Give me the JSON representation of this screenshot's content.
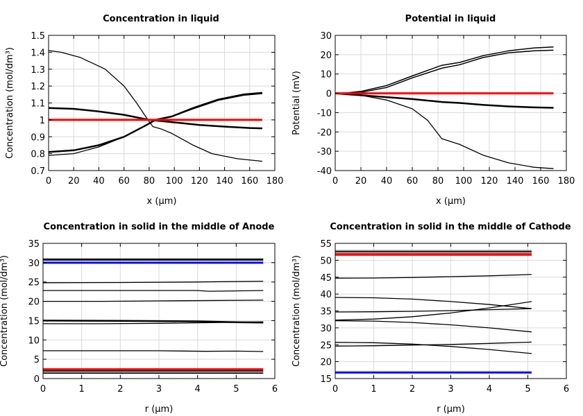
{
  "chart_data": [
    {
      "type": "line",
      "title": "Concentration in liquid",
      "xlabel": "x (µm)",
      "ylabel": "Concentration (mol/dm³)",
      "xlim": [
        0,
        180
      ],
      "ylim": [
        0.7,
        1.5
      ],
      "xticks": [
        0,
        20,
        40,
        60,
        80,
        100,
        120,
        140,
        160,
        180
      ],
      "yticks": [
        0.7,
        0.8,
        0.9,
        1,
        1.1,
        1.2,
        1.3,
        1.4,
        1.5
      ],
      "grid": true,
      "series": [
        {
          "color": "#000000",
          "width": 1.3,
          "x": [
            0,
            10,
            25,
            45,
            60,
            70,
            79,
            83,
            90,
            98,
            115,
            130,
            150,
            170
          ],
          "y": [
            1.41,
            1.4,
            1.37,
            1.3,
            1.2,
            1.1,
            1.0,
            0.96,
            0.945,
            0.92,
            0.85,
            0.8,
            0.77,
            0.755
          ]
        },
        {
          "color": "#000000",
          "width": 2.5,
          "x": [
            0,
            20,
            40,
            60,
            80,
            100,
            120,
            140,
            160,
            170
          ],
          "y": [
            1.07,
            1.065,
            1.05,
            1.03,
            1.0,
            0.985,
            0.97,
            0.96,
            0.952,
            0.95
          ]
        },
        {
          "color": "#000000",
          "width": 2.5,
          "x": [
            0,
            20,
            40,
            60,
            78,
            85,
            98,
            115,
            135,
            155,
            170
          ],
          "y": [
            0.81,
            0.82,
            0.85,
            0.9,
            0.97,
            1.0,
            1.02,
            1.07,
            1.12,
            1.15,
            1.16
          ]
        },
        {
          "color": "#000000",
          "width": 1.3,
          "x": [
            0,
            20,
            40,
            60,
            78,
            85,
            100,
            115,
            135,
            155,
            170
          ],
          "y": [
            0.79,
            0.8,
            0.84,
            0.9,
            0.97,
            1.0,
            1.025,
            1.065,
            1.115,
            1.145,
            1.155
          ]
        },
        {
          "color": "#ff0000",
          "width": 3,
          "x": [
            0,
            170
          ],
          "y": [
            1.0,
            1.0
          ]
        }
      ]
    },
    {
      "type": "line",
      "title": "Potential in liquid",
      "xlabel": "x (µm)",
      "ylabel": "Potential (mV)",
      "xlim": [
        0,
        180
      ],
      "ylim": [
        -40,
        30
      ],
      "xticks": [
        0,
        20,
        40,
        60,
        80,
        100,
        120,
        140,
        160,
        180
      ],
      "yticks": [
        -40,
        -30,
        -20,
        -10,
        0,
        10,
        20,
        30
      ],
      "grid": true,
      "series": [
        {
          "color": "#000000",
          "width": 1.5,
          "x": [
            0,
            10,
            20,
            40,
            60,
            83,
            97,
            115,
            135,
            155,
            170
          ],
          "y": [
            0,
            0.3,
            1,
            4,
            9,
            14.5,
            16,
            19.5,
            22,
            23.5,
            24
          ]
        },
        {
          "color": "#000000",
          "width": 1.5,
          "x": [
            0,
            10,
            20,
            40,
            60,
            83,
            97,
            115,
            135,
            155,
            170
          ],
          "y": [
            0,
            0.2,
            0.5,
            3,
            8,
            13,
            14.8,
            18.5,
            21,
            22,
            22.3
          ]
        },
        {
          "color": "#000000",
          "width": 2.5,
          "x": [
            0,
            20,
            40,
            60,
            83,
            97,
            115,
            135,
            155,
            170
          ],
          "y": [
            0,
            -1,
            -2,
            -3,
            -4.5,
            -5,
            -6,
            -6.8,
            -7.3,
            -7.5
          ]
        },
        {
          "color": "#000000",
          "width": 1.3,
          "x": [
            0,
            10,
            20,
            40,
            60,
            72,
            83,
            97,
            115,
            135,
            155,
            170
          ],
          "y": [
            0,
            -0.3,
            -1,
            -3.5,
            -8,
            -14,
            -23.5,
            -26.5,
            -32,
            -36,
            -38.3,
            -39
          ]
        },
        {
          "color": "#ff0000",
          "width": 3,
          "x": [
            0,
            170
          ],
          "y": [
            0,
            0
          ]
        }
      ]
    },
    {
      "type": "line",
      "title": "Concentration in solid in the middle of Anode",
      "xlabel": "r (µm)",
      "ylabel": "Concentration (mol/dm³)",
      "xlim": [
        0,
        6
      ],
      "ylim": [
        0,
        35
      ],
      "xticks": [
        0,
        1,
        2,
        3,
        4,
        5,
        6
      ],
      "yticks": [
        0,
        5,
        10,
        15,
        20,
        25,
        30,
        35
      ],
      "grid": true,
      "series": [
        {
          "color": "#000000",
          "width": 3,
          "x": [
            0,
            5.7
          ],
          "y": [
            30.8,
            30.8
          ]
        },
        {
          "color": "#0000ff",
          "width": 3,
          "x": [
            0,
            5.7
          ],
          "y": [
            30,
            30
          ]
        },
        {
          "color": "#000000",
          "width": 1.3,
          "x": [
            0,
            2,
            4,
            5.7
          ],
          "y": [
            24.8,
            24.85,
            25,
            25.2
          ]
        },
        {
          "color": "#000000",
          "width": 1.3,
          "x": [
            0,
            2,
            4,
            4.3,
            5.7
          ],
          "y": [
            22.8,
            22.8,
            22.8,
            22.6,
            22.8
          ]
        },
        {
          "color": "#000000",
          "width": 1.3,
          "x": [
            0,
            1.5,
            3,
            5.7
          ],
          "y": [
            20,
            20,
            20.1,
            20.3
          ]
        },
        {
          "color": "#000000",
          "width": 2.5,
          "x": [
            0,
            2,
            4,
            5,
            5.7
          ],
          "y": [
            15,
            14.95,
            14.8,
            14.6,
            14.5
          ]
        },
        {
          "color": "#000000",
          "width": 1.3,
          "x": [
            0,
            1.5,
            3,
            4.5,
            5.7
          ],
          "y": [
            14.2,
            14.2,
            14.3,
            14.5,
            14.7
          ]
        },
        {
          "color": "#000000",
          "width": 1.3,
          "x": [
            0,
            3,
            4.2,
            5,
            5.7
          ],
          "y": [
            7.2,
            7.2,
            7.05,
            7.1,
            7.0
          ]
        },
        {
          "color": "#ff0000",
          "width": 3,
          "x": [
            0,
            5.7
          ],
          "y": [
            2.4,
            2.4
          ]
        },
        {
          "color": "#000000",
          "width": 1.5,
          "x": [
            0,
            5.7
          ],
          "y": [
            2.0,
            2.0
          ]
        },
        {
          "color": "#999999",
          "width": 1.5,
          "x": [
            0,
            5.7
          ],
          "y": [
            1.7,
            1.7
          ]
        },
        {
          "color": "#000000",
          "width": 1.5,
          "x": [
            0,
            5.7
          ],
          "y": [
            1.4,
            1.4
          ]
        }
      ]
    },
    {
      "type": "line",
      "title": "Concentration in solid in the middle of Cathode",
      "xlabel": "r (µm)",
      "ylabel": "Concentration (mol/dm³)",
      "xlim": [
        0,
        6
      ],
      "ylim": [
        15,
        55
      ],
      "xticks": [
        0,
        1,
        2,
        3,
        4,
        5,
        6
      ],
      "yticks": [
        15,
        20,
        25,
        30,
        35,
        40,
        45,
        50,
        55
      ],
      "grid": true,
      "series": [
        {
          "color": "#999999",
          "width": 1.5,
          "x": [
            0,
            5.1
          ],
          "y": [
            52.9,
            52.9
          ]
        },
        {
          "color": "#000000",
          "width": 1.5,
          "x": [
            0,
            5.1
          ],
          "y": [
            52.6,
            52.6
          ]
        },
        {
          "color": "#999999",
          "width": 1.5,
          "x": [
            0,
            5.1
          ],
          "y": [
            52.2,
            52.2
          ]
        },
        {
          "color": "#ff0000",
          "width": 3.5,
          "x": [
            0,
            5.1
          ],
          "y": [
            51.7,
            51.7
          ]
        },
        {
          "color": "#000000",
          "width": 1.3,
          "x": [
            0,
            1,
            2,
            3,
            4,
            5.1
          ],
          "y": [
            44.7,
            44.75,
            44.9,
            45.15,
            45.4,
            45.8
          ]
        },
        {
          "color": "#000000",
          "width": 1.3,
          "x": [
            0,
            1,
            2,
            3,
            4,
            5.1
          ],
          "y": [
            39,
            38.9,
            38.5,
            37.8,
            36.9,
            35.7
          ]
        },
        {
          "color": "#000000",
          "width": 1.3,
          "x": [
            0,
            1,
            2,
            3,
            4,
            5.1
          ],
          "y": [
            34.7,
            34.75,
            34.9,
            35.1,
            35.4,
            35.7
          ]
        },
        {
          "color": "#000000",
          "width": 1.3,
          "x": [
            0,
            1,
            2,
            3,
            4,
            5.1
          ],
          "y": [
            32.3,
            32.6,
            33.3,
            34.4,
            35.9,
            37.8
          ]
        },
        {
          "color": "#000000",
          "width": 1.3,
          "x": [
            0,
            1,
            2,
            3,
            4,
            5.1
          ],
          "y": [
            32.1,
            32,
            31.6,
            30.9,
            30,
            28.8
          ]
        },
        {
          "color": "#000000",
          "width": 1.3,
          "x": [
            0,
            1,
            2,
            3,
            4,
            5.1
          ],
          "y": [
            25.7,
            25.6,
            25.2,
            24.5,
            23.6,
            22.4
          ]
        },
        {
          "color": "#000000",
          "width": 1.3,
          "x": [
            0,
            1,
            2,
            3,
            4,
            5.1
          ],
          "y": [
            24.6,
            24.7,
            24.9,
            25.1,
            25.4,
            25.8
          ]
        },
        {
          "color": "#0000ff",
          "width": 3,
          "x": [
            0,
            5.1
          ],
          "y": [
            16.8,
            16.8
          ]
        }
      ]
    }
  ]
}
